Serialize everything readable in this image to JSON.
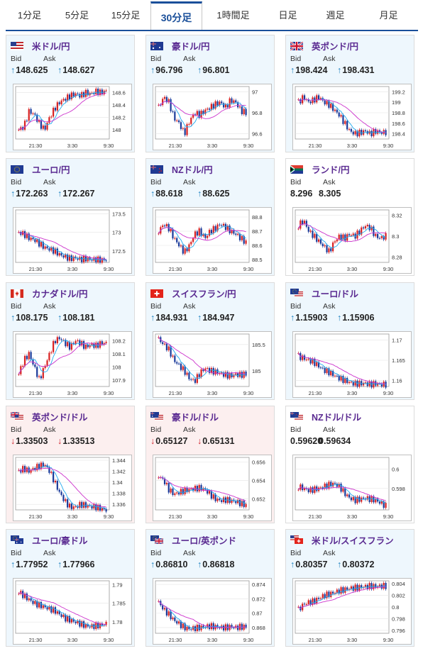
{
  "tabs": [
    "1分足",
    "5分足",
    "15分足",
    "30分足",
    "1時間足",
    "日足",
    "週足",
    "月足"
  ],
  "active_tab_index": 3,
  "labels": {
    "bid": "Bid",
    "ask": "Ask"
  },
  "colors": {
    "up_arrow": "#1a7fc0",
    "down_arrow": "#d0202a",
    "pair_text": "#5a2a91",
    "candle_up": "#d92020",
    "candle_down": "#1a3a9a",
    "ma_fast": "#22aaee",
    "ma_slow": "#cc33cc"
  },
  "panels": [
    {
      "pair": "米ドル/円",
      "flags": [
        "us"
      ],
      "bid": "148.625",
      "ask": "148.627",
      "direction": "up",
      "x_ticks": [
        "21:30",
        "3:30",
        "9:30"
      ],
      "y_ticks": [
        "148.6",
        "148.4",
        "148.2",
        "148"
      ],
      "chart_data": {
        "type": "candlestick",
        "y_range": [
          147.85,
          148.7
        ],
        "series": [
          148.0,
          148.05,
          148.3,
          148.25,
          148.1,
          148.0,
          148.2,
          148.35,
          148.45,
          148.5,
          148.55,
          148.58,
          148.55,
          148.6,
          148.58,
          148.62,
          148.6,
          148.63
        ]
      }
    },
    {
      "pair": "豪ドル/円",
      "flags": [
        "au"
      ],
      "bid": "96.796",
      "ask": "96.801",
      "direction": "up",
      "x_ticks": [
        "21:30",
        "3:30",
        "9:30"
      ],
      "y_ticks": [
        "97",
        "96.8",
        "96.6"
      ],
      "chart_data": {
        "type": "candlestick",
        "y_range": [
          96.55,
          97.05
        ],
        "series": [
          96.85,
          96.95,
          96.9,
          96.75,
          96.7,
          96.6,
          96.72,
          96.8,
          96.78,
          96.82,
          96.85,
          96.88,
          96.9,
          96.85,
          96.92,
          96.9,
          96.82,
          96.8
        ]
      }
    },
    {
      "pair": "英ポンド/円",
      "flags": [
        "gb"
      ],
      "bid": "198.424",
      "ask": "198.431",
      "direction": "up",
      "x_ticks": [
        "21:30",
        "3:30",
        "9:30"
      ],
      "y_ticks": [
        "199.2",
        "199",
        "198.8",
        "198.6",
        "198.4"
      ],
      "chart_data": {
        "type": "candlestick",
        "y_range": [
          198.3,
          199.3
        ],
        "series": [
          199.0,
          199.1,
          199.0,
          199.05,
          199.1,
          199.0,
          198.95,
          198.85,
          198.75,
          198.6,
          198.45,
          198.4,
          198.42,
          198.45,
          198.4,
          198.45,
          198.42,
          198.43
        ]
      }
    },
    {
      "pair": "ユーロ/円",
      "flags": [
        "eu"
      ],
      "bid": "172.263",
      "ask": "172.267",
      "direction": "up",
      "x_ticks": [
        "21:30",
        "3:30",
        "9:30"
      ],
      "y_ticks": [
        "173.5",
        "173",
        "172.5"
      ],
      "chart_data": {
        "type": "candlestick",
        "y_range": [
          172.2,
          173.6
        ],
        "series": [
          173.0,
          172.95,
          172.85,
          172.8,
          172.7,
          172.6,
          172.55,
          172.5,
          172.4,
          172.35,
          172.3,
          172.32,
          172.28,
          172.3,
          172.27,
          172.28,
          172.26,
          172.27
        ]
      }
    },
    {
      "pair": "NZドル/円",
      "flags": [
        "nz"
      ],
      "bid": "88.618",
      "ask": "88.625",
      "direction": "up",
      "x_ticks": [
        "21:30",
        "3:30",
        "9:30"
      ],
      "y_ticks": [
        "88.8",
        "88.7",
        "88.6",
        "88.5"
      ],
      "chart_data": {
        "type": "candlestick",
        "y_range": [
          88.48,
          88.85
        ],
        "series": [
          88.7,
          88.75,
          88.72,
          88.65,
          88.6,
          88.55,
          88.6,
          88.68,
          88.7,
          88.65,
          88.7,
          88.72,
          88.75,
          88.73,
          88.7,
          88.68,
          88.65,
          88.62
        ]
      }
    },
    {
      "pair": "ランド/円",
      "flags": [
        "za"
      ],
      "bid": "8.296",
      "ask": "8.305",
      "direction": "neutral",
      "x_ticks": [
        "21:30",
        "3:30",
        "9:30"
      ],
      "y_ticks": [
        "8.32",
        "8.3",
        "8.28"
      ],
      "chart_data": {
        "type": "candlestick",
        "y_range": [
          8.275,
          8.325
        ],
        "series": [
          8.31,
          8.315,
          8.305,
          8.3,
          8.295,
          8.29,
          8.285,
          8.295,
          8.3,
          8.298,
          8.302,
          8.3,
          8.305,
          8.31,
          8.308,
          8.3,
          8.298,
          8.3
        ]
      }
    },
    {
      "pair": "カナダドル/円",
      "flags": [
        "ca"
      ],
      "bid": "108.175",
      "ask": "108.181",
      "direction": "up",
      "x_ticks": [
        "21:30",
        "3:30",
        "9:30"
      ],
      "y_ticks": [
        "108.2",
        "108.1",
        "108",
        "107.9"
      ],
      "chart_data": {
        "type": "candlestick",
        "y_range": [
          107.85,
          108.25
        ],
        "series": [
          107.95,
          108.05,
          108.1,
          108.0,
          107.9,
          108.0,
          108.1,
          108.2,
          108.22,
          108.18,
          108.15,
          108.2,
          108.18,
          108.15,
          108.17,
          108.16,
          108.18,
          108.18
        ]
      }
    },
    {
      "pair": "スイスフラン/円",
      "flags": [
        "ch"
      ],
      "bid": "184.931",
      "ask": "184.947",
      "direction": "up",
      "x_ticks": [
        "21:30",
        "3:30",
        "9:30"
      ],
      "y_ticks": [
        "185.5",
        "185"
      ],
      "chart_data": {
        "type": "candlestick",
        "y_range": [
          184.7,
          185.7
        ],
        "series": [
          185.6,
          185.5,
          185.4,
          185.2,
          185.1,
          185.0,
          184.85,
          184.8,
          184.95,
          185.05,
          185.0,
          184.98,
          184.95,
          184.92,
          184.9,
          184.93,
          184.92,
          184.94
        ]
      }
    },
    {
      "pair": "ユーロ/ドル",
      "flags": [
        "eu",
        "us"
      ],
      "bid": "1.15903",
      "ask": "1.15906",
      "direction": "up",
      "x_ticks": [
        "21:30",
        "3:30",
        "9:30"
      ],
      "y_ticks": [
        "1.17",
        "1.165",
        "1.16"
      ],
      "chart_data": {
        "type": "candlestick",
        "y_range": [
          1.1585,
          1.1715
        ],
        "series": [
          1.166,
          1.1655,
          1.165,
          1.1645,
          1.1635,
          1.1625,
          1.162,
          1.1612,
          1.1605,
          1.16,
          1.1595,
          1.1592,
          1.1592,
          1.1593,
          1.159,
          1.1592,
          1.159,
          1.159
        ]
      }
    },
    {
      "pair": "英ポンド/ドル",
      "flags": [
        "gb",
        "us"
      ],
      "bid": "1.33503",
      "ask": "1.33513",
      "direction": "down",
      "x_ticks": [
        "21:30",
        "3:30",
        "9:30"
      ],
      "y_ticks": [
        "1.344",
        "1.342",
        "1.34",
        "1.338",
        "1.336"
      ],
      "chart_data": {
        "type": "candlestick",
        "y_range": [
          1.335,
          1.3445
        ],
        "series": [
          1.342,
          1.3425,
          1.342,
          1.3425,
          1.343,
          1.3432,
          1.342,
          1.34,
          1.338,
          1.3365,
          1.3355,
          1.3355,
          1.336,
          1.3358,
          1.3356,
          1.3355,
          1.3352,
          1.335
        ]
      }
    },
    {
      "pair": "豪ドル/ドル",
      "flags": [
        "au",
        "us"
      ],
      "bid": "0.65127",
      "ask": "0.65131",
      "direction": "down",
      "x_ticks": [
        "21:30",
        "3:30",
        "9:30"
      ],
      "y_ticks": [
        "0.656",
        "0.654",
        "0.652"
      ],
      "chart_data": {
        "type": "candlestick",
        "y_range": [
          0.6508,
          0.6565
        ],
        "series": [
          0.6545,
          0.654,
          0.653,
          0.6525,
          0.6527,
          0.6529,
          0.653,
          0.6531,
          0.6532,
          0.653,
          0.6525,
          0.652,
          0.6518,
          0.6519,
          0.6518,
          0.6517,
          0.6515,
          0.6513
        ]
      }
    },
    {
      "pair": "NZドル/ドル",
      "flags": [
        "nz",
        "us"
      ],
      "bid": "0.59620",
      "ask": "0.59634",
      "direction": "neutral",
      "x_ticks": [
        "21:30",
        "3:30",
        "9:30"
      ],
      "y_ticks": [
        "0.6",
        "0.598"
      ],
      "chart_data": {
        "type": "candlestick",
        "y_range": [
          0.5958,
          0.6012
        ],
        "series": [
          0.5982,
          0.598,
          0.5978,
          0.5979,
          0.598,
          0.5982,
          0.5984,
          0.5985,
          0.5982,
          0.5975,
          0.597,
          0.5968,
          0.5969,
          0.597,
          0.5969,
          0.5968,
          0.5965,
          0.5962
        ]
      }
    },
    {
      "pair": "ユーロ/豪ドル",
      "flags": [
        "eu",
        "au"
      ],
      "bid": "1.77952",
      "ask": "1.77966",
      "direction": "up",
      "x_ticks": [
        "21:30",
        "3:30",
        "9:30"
      ],
      "y_ticks": [
        "1.79",
        "1.785",
        "1.78"
      ],
      "chart_data": {
        "type": "candlestick",
        "y_range": [
          1.777,
          1.791
        ],
        "series": [
          1.788,
          1.787,
          1.786,
          1.785,
          1.7845,
          1.784,
          1.7835,
          1.783,
          1.782,
          1.781,
          1.7805,
          1.78,
          1.7795,
          1.779,
          1.7788,
          1.779,
          1.7792,
          1.7795
        ]
      }
    },
    {
      "pair": "ユーロ/英ポンド",
      "flags": [
        "eu",
        "gb"
      ],
      "bid": "0.86810",
      "ask": "0.86818",
      "direction": "up",
      "x_ticks": [
        "21:30",
        "3:30",
        "9:30"
      ],
      "y_ticks": [
        "0.874",
        "0.872",
        "0.87",
        "0.868"
      ],
      "chart_data": {
        "type": "candlestick",
        "y_range": [
          0.8672,
          0.8745
        ],
        "series": [
          0.8715,
          0.8705,
          0.8698,
          0.869,
          0.8685,
          0.868,
          0.8678,
          0.8679,
          0.868,
          0.8681,
          0.8682,
          0.8681,
          0.868,
          0.868,
          0.8681,
          0.868,
          0.8681,
          0.8681
        ]
      }
    },
    {
      "pair": "米ドル/スイスフラン",
      "flags": [
        "us",
        "ch"
      ],
      "bid": "0.80357",
      "ask": "0.80372",
      "direction": "up",
      "x_ticks": [
        "21:30",
        "3:30",
        "9:30"
      ],
      "y_ticks": [
        "0.804",
        "0.802",
        "0.8",
        "0.798",
        "0.796"
      ],
      "chart_data": {
        "type": "candlestick",
        "y_range": [
          0.7955,
          0.8045
        ],
        "series": [
          0.7995,
          0.8005,
          0.8008,
          0.801,
          0.8015,
          0.802,
          0.8022,
          0.8025,
          0.8028,
          0.803,
          0.8032,
          0.8033,
          0.8034,
          0.8035,
          0.8036,
          0.8035,
          0.8036,
          0.8036
        ]
      }
    }
  ]
}
